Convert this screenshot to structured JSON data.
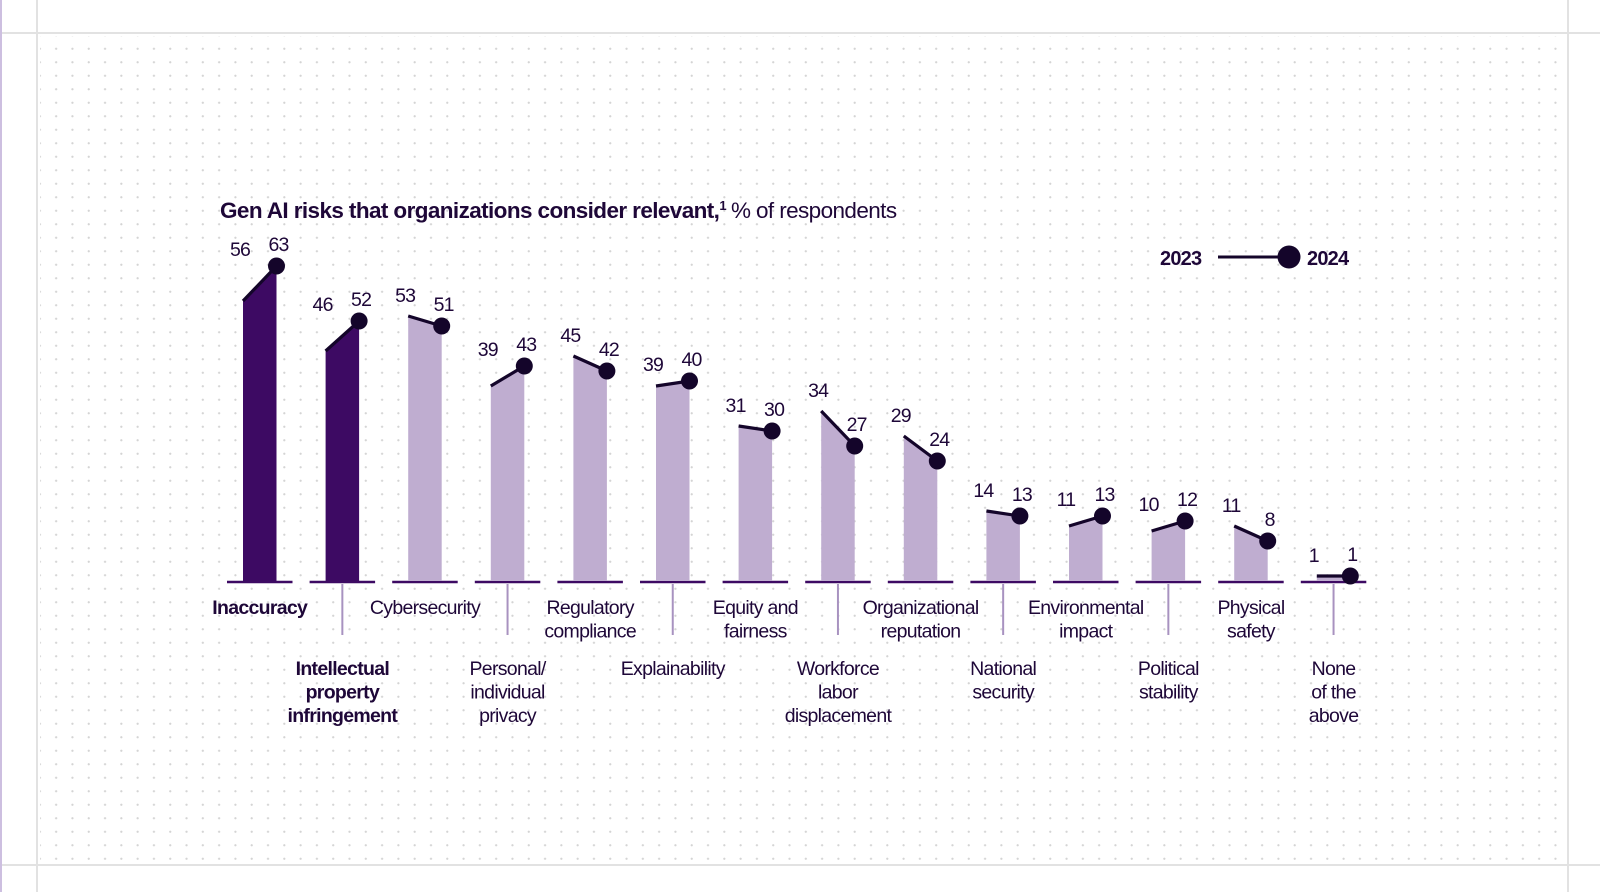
{
  "chart_data": {
    "type": "bar",
    "subtype": "slope-bar (bar top connects 2023 value to 2024 value)",
    "title": "Gen AI risks that organizations consider relevant,",
    "title_footnote": "1",
    "subtitle": "% of respondents",
    "xlabel": "",
    "ylabel": "",
    "ylim": [
      0,
      63
    ],
    "grid": false,
    "legend": {
      "placement": "top-right",
      "entries": [
        {
          "label": "2023",
          "marker": "line-start"
        },
        {
          "label": "2024",
          "marker": "filled-circle"
        }
      ]
    },
    "categories": [
      "Inaccuracy",
      "Intellectual property infringement",
      "Cybersecurity",
      "Personal/ individual privacy",
      "Regulatory compliance",
      "Explainability",
      "Equity and fairness",
      "Workforce labor displacement",
      "Organizational reputation",
      "National security",
      "Environmental impact",
      "Political stability",
      "Physical safety",
      "None of the above"
    ],
    "category_lines": [
      [
        "Inaccuracy"
      ],
      [
        "Intellectual",
        "property",
        "infringement"
      ],
      [
        "Cybersecurity"
      ],
      [
        "Personal/",
        "individual",
        "privacy"
      ],
      [
        "Regulatory",
        "compliance"
      ],
      [
        "Explainability"
      ],
      [
        "Equity and",
        "fairness"
      ],
      [
        "Workforce",
        "labor",
        "displacement"
      ],
      [
        "Organizational",
        "reputation"
      ],
      [
        "National",
        "security"
      ],
      [
        "Environmental",
        "impact"
      ],
      [
        "Political",
        "stability"
      ],
      [
        "Physical",
        "safety"
      ],
      [
        "None",
        "of the",
        "above"
      ]
    ],
    "highlighted": [
      true,
      true,
      false,
      false,
      false,
      false,
      false,
      false,
      false,
      false,
      false,
      false,
      false,
      false
    ],
    "series": [
      {
        "name": "2023",
        "values": [
          56,
          46,
          53,
          39,
          45,
          39,
          31,
          34,
          29,
          14,
          11,
          10,
          11,
          1
        ]
      },
      {
        "name": "2024",
        "values": [
          63,
          52,
          51,
          43,
          42,
          40,
          30,
          27,
          24,
          13,
          13,
          12,
          8,
          1
        ]
      }
    ],
    "colors": {
      "highlight_bar": "#3d0a63",
      "normal_bar": "#bfadd0",
      "text": "#1e0738",
      "slope_line": "#14052a",
      "baseline": "#3d0a63",
      "divider": "#a892c0"
    }
  }
}
